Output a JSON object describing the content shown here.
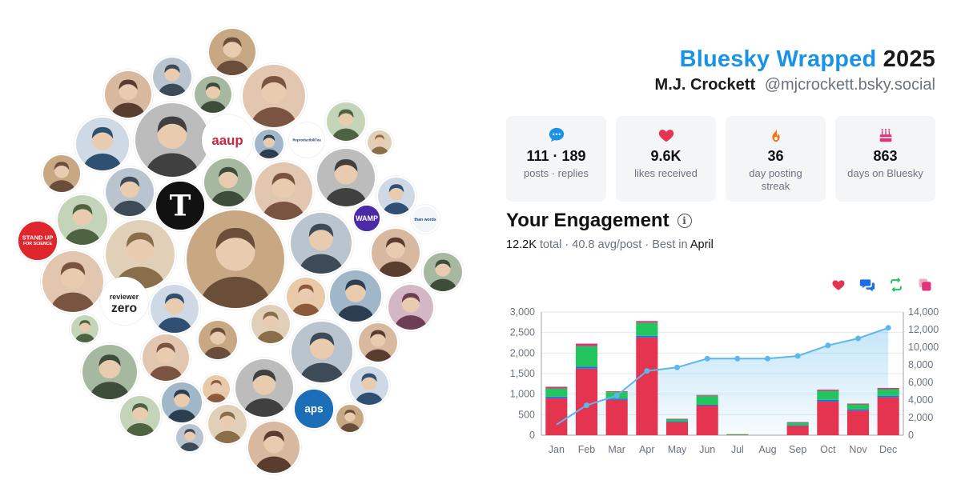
{
  "header": {
    "brand": "Bluesky Wrapped",
    "year": "2025",
    "display_name": "M.J. Crockett",
    "handle": "@mjcrockett.bsky.social"
  },
  "stats": [
    {
      "icon": "chat-bubble-icon",
      "value": "111 · 189",
      "label": "posts · replies",
      "color": "#1a93e6"
    },
    {
      "icon": "heart-icon",
      "value": "9.6K",
      "label": "likes received",
      "color": "#e5344f"
    },
    {
      "icon": "flame-icon",
      "value": "36",
      "label": "day posting streak",
      "color": "#f97316"
    },
    {
      "icon": "cake-icon",
      "value": "863",
      "label": "days on Bluesky",
      "color": "#e0337a"
    }
  ],
  "engagement": {
    "title": "Your Engagement",
    "total": "12.2K",
    "total_label": "total",
    "avg": "40.8 avg/post",
    "best_label": "Best in",
    "best_month": "April"
  },
  "legend": [
    {
      "icon": "heart-icon",
      "color": "#e5344f"
    },
    {
      "icon": "reply-icon",
      "color": "#1a6ee6"
    },
    {
      "icon": "repost-icon",
      "color": "#22c55e"
    },
    {
      "icon": "quote-icon",
      "color": "#e0337a"
    }
  ],
  "chart_data": {
    "type": "bar",
    "categories": [
      "Jan",
      "Feb",
      "Mar",
      "Apr",
      "May",
      "Jun",
      "Jul",
      "Aug",
      "Sep",
      "Oct",
      "Nov",
      "Dec"
    ],
    "series": [
      {
        "color": "#e5344f",
        "values": [
          900,
          1620,
          860,
          2380,
          320,
          720,
          20,
          0,
          230,
          820,
          600,
          920
        ]
      },
      {
        "color": "#1a6ee6",
        "values": [
          40,
          50,
          30,
          40,
          10,
          20,
          0,
          0,
          10,
          40,
          30,
          40
        ]
      },
      {
        "color": "#22c55e",
        "values": [
          200,
          500,
          160,
          320,
          60,
          220,
          5,
          0,
          70,
          220,
          120,
          160
        ]
      },
      {
        "color": "#e0337a",
        "values": [
          40,
          60,
          20,
          40,
          10,
          20,
          0,
          0,
          10,
          30,
          20,
          30
        ]
      }
    ],
    "cumulative": {
      "color": "#5bb8ec",
      "values": [
        1200,
        3400,
        4500,
        7300,
        7700,
        8700,
        8700,
        8700,
        9000,
        10200,
        11000,
        12200
      ]
    },
    "yticks_left": [
      "0",
      "500",
      "1,000",
      "1,500",
      "2,000",
      "2,500",
      "3,000"
    ],
    "yticks_right": [
      "0",
      "2,000",
      "4,000",
      "6,000",
      "8,000",
      "10,000",
      "12,000",
      "14,000"
    ],
    "ylim_left": [
      0,
      3000
    ],
    "ylim_right": [
      0,
      14000
    ]
  },
  "avatars": [
    {
      "name": "avatar-stand-up-for-science",
      "text_lines": [
        "STAND UP",
        "FOR SCIENCE"
      ],
      "bg": "#e0262d",
      "fg": "#ffffff"
    },
    {
      "name": "avatar-aaup",
      "text_lines": [
        "aaup"
      ],
      "bg": "#ffffff",
      "fg": "#c4273e"
    },
    {
      "name": "avatar-nyt",
      "text_lines": [
        "T"
      ],
      "bg": "#111111",
      "fg": "#ffffff"
    },
    {
      "name": "avatar-reviewer-zero",
      "text_lines": [
        "reviewer",
        "zero"
      ],
      "bg": "#ffffff",
      "fg": "#222222"
    },
    {
      "name": "avatar-aps",
      "text_lines": [
        "aps"
      ],
      "bg": "#1c6fb6",
      "fg": "#ffffff"
    },
    {
      "name": "avatar-more-than-words",
      "text_lines": [
        "than words"
      ],
      "bg": "#f2f6f9",
      "fg": "#1a4b7a"
    },
    {
      "name": "avatar-wamp",
      "text_lines": [
        "WAMP"
      ],
      "bg": "#4b2aa8",
      "fg": "#ffffff"
    },
    {
      "name": "avatar-reproducibilitea",
      "text_lines": [
        "ReproducibiliTea"
      ],
      "bg": "#ffffff",
      "fg": "#1c3f6e"
    }
  ]
}
